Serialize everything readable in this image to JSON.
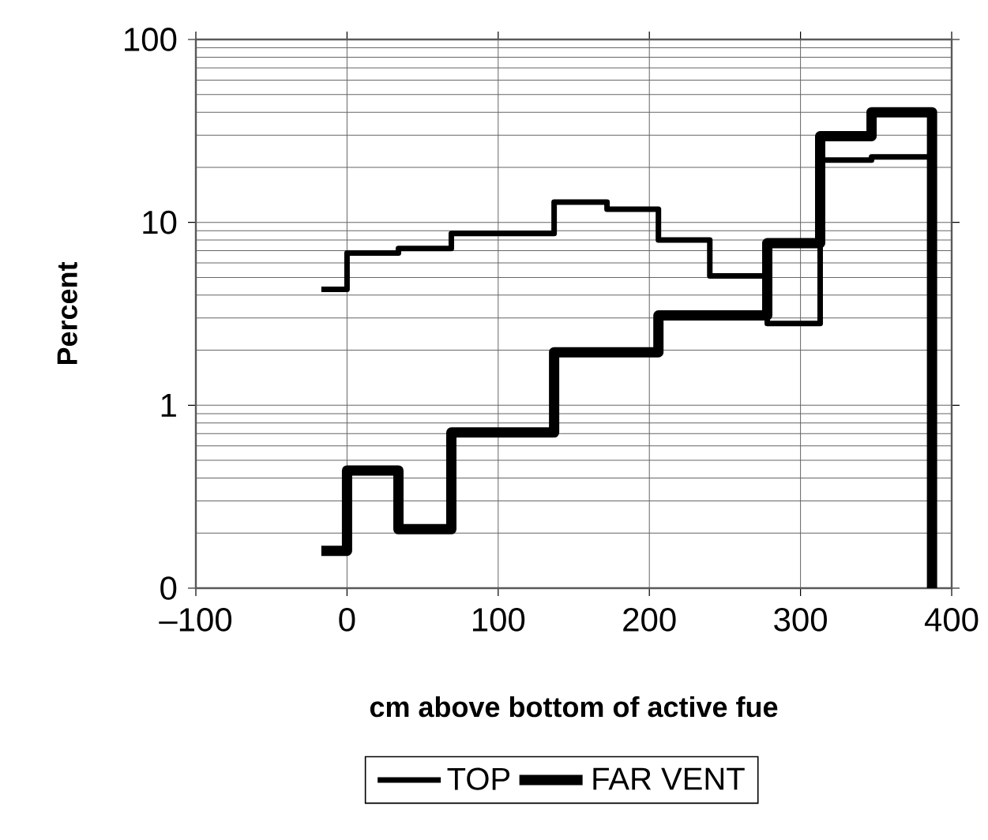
{
  "chart_data": {
    "type": "line",
    "xlabel": "cm above bottom of active fue",
    "ylabel": "Percent",
    "xlim": [
      -100,
      400
    ],
    "xticks": [
      {
        "value": -100,
        "label": "–100"
      },
      0,
      100,
      200,
      300,
      400
    ],
    "ylim": [
      0.1,
      100
    ],
    "yticks": [
      {
        "value": 0.1,
        "label": "0"
      },
      1,
      10,
      100
    ],
    "log": "y",
    "grid": true,
    "legend": "bottom",
    "series": [
      {
        "name": "TOP",
        "color": "#000000",
        "x": [
          -17,
          0,
          0,
          34,
          34,
          69,
          69,
          137,
          137,
          172,
          172,
          206,
          206,
          240,
          240,
          278,
          278,
          313,
          313,
          347,
          347,
          387
        ],
        "values": [
          4.3,
          4.3,
          6.8,
          6.8,
          7.2,
          7.2,
          8.7,
          8.7,
          12.9,
          12.9,
          11.8,
          11.8,
          8.0,
          8.0,
          5.1,
          5.1,
          2.8,
          2.8,
          21.9,
          21.9,
          22.8,
          22.8
        ]
      },
      {
        "name": "FAR VENT",
        "color": "#000000",
        "x": [
          -17,
          0,
          0,
          34,
          34,
          69,
          69,
          137,
          137,
          206,
          206,
          278,
          278,
          313,
          313,
          347,
          347,
          387,
          387
        ],
        "values": [
          0.16,
          0.16,
          0.44,
          0.44,
          0.21,
          0.21,
          0.71,
          0.71,
          1.95,
          1.95,
          3.1,
          3.1,
          7.7,
          7.7,
          29.6,
          29.6,
          40,
          40,
          0.1
        ]
      }
    ]
  }
}
